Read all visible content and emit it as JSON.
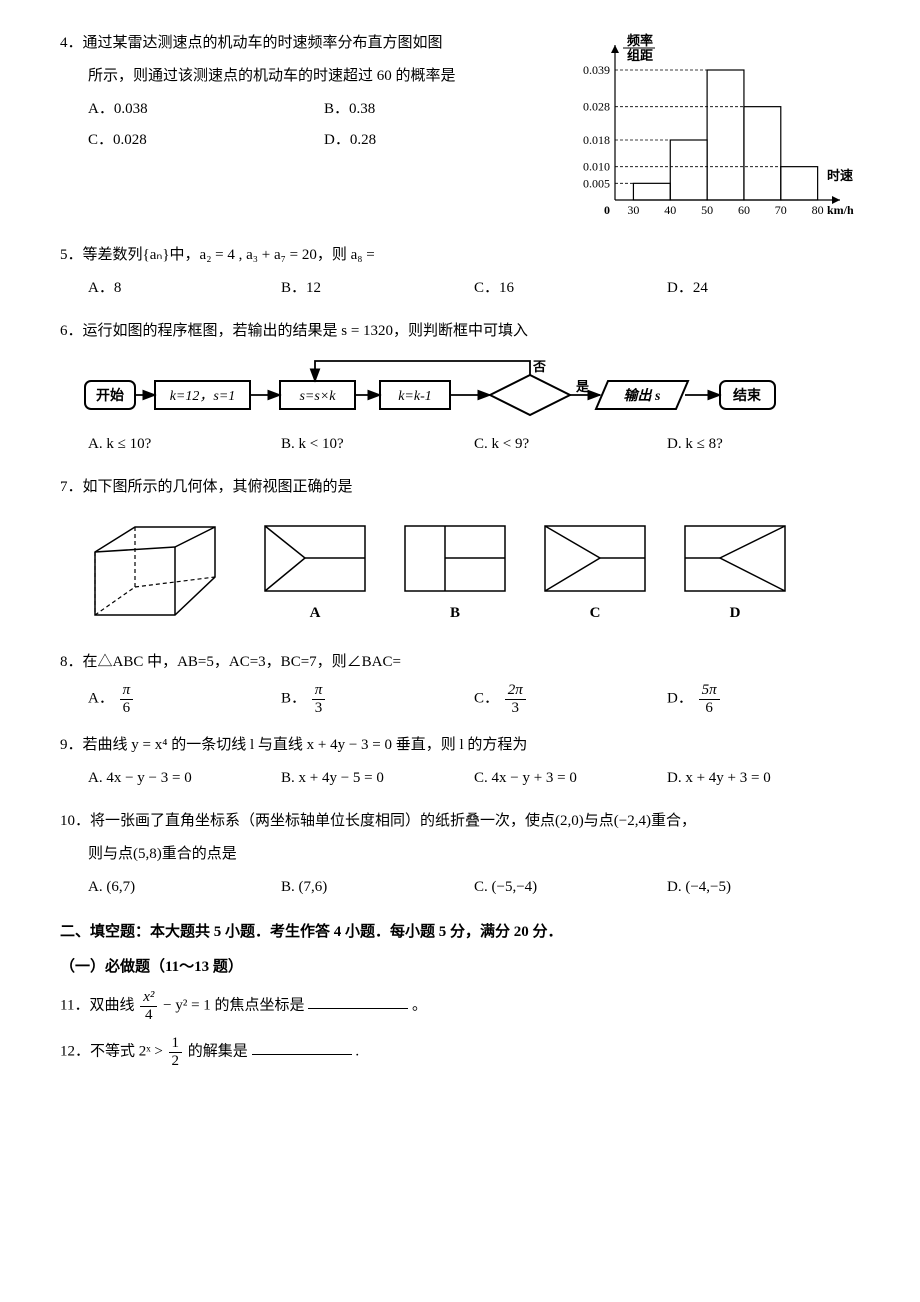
{
  "q4": {
    "num": "4．",
    "line1": "通过某雷达测速点的机动车的时速频率分布直方图如图",
    "line2": "所示，则通过该测速点的机动车的时速超过 60 的概率是",
    "optA": "A．0.038",
    "optB": "B．0.38",
    "optC": "C．0.028",
    "optD": "D．0.28",
    "histogram": {
      "ylabel_num": "频率",
      "ylabel_den": "组距",
      "xlabel1": "时速",
      "xlabel2": "km/h",
      "yticks": [
        "0.005",
        "0.010",
        "0.018",
        "0.028",
        "0.039"
      ],
      "yvals": [
        0.005,
        0.01,
        0.018,
        0.028,
        0.039
      ],
      "xticks": [
        "0",
        "30",
        "40",
        "50",
        "60",
        "70",
        "80"
      ],
      "bars": [
        {
          "x": 30,
          "w": 10,
          "h": 0.005
        },
        {
          "x": 40,
          "w": 10,
          "h": 0.018
        },
        {
          "x": 50,
          "w": 10,
          "h": 0.039
        },
        {
          "x": 60,
          "w": 10,
          "h": 0.028
        },
        {
          "x": 70,
          "w": 10,
          "h": 0.01
        }
      ],
      "axis_color": "#000000",
      "line_width": 1.2
    }
  },
  "q5": {
    "text": "5．等差数列{aₙ}中，a₂ = 4 , a₃ + a₇ = 20，则 a₈ =",
    "optA": "A．8",
    "optB": "B．12",
    "optC": "C．16",
    "optD": "D．24"
  },
  "q6": {
    "text": "6．运行如图的程序框图，若输出的结果是 s = 1320，则判断框中可填入",
    "flow": {
      "start": "开始",
      "init": "k=12，s=1",
      "step1": "s=s×k",
      "step2": "k=k-1",
      "no": "否",
      "yes": "是",
      "out": "输出 s",
      "end": "结束"
    },
    "optA": "A.  k ≤ 10?",
    "optB": "B.  k < 10?",
    "optC": "C.  k < 9?",
    "optD": "D.  k ≤ 8?"
  },
  "q7": {
    "text": "7．如下图所示的几何体，其俯视图正确的是",
    "labels": {
      "A": "A",
      "B": "B",
      "C": "C",
      "D": "D"
    }
  },
  "q8": {
    "text": "8．在△ABC 中，AB=5，AC=3，BC=7，则∠BAC=",
    "optA_prefix": "A．",
    "optA_num": "π",
    "optA_den": "6",
    "optB_prefix": "B．",
    "optB_num": "π",
    "optB_den": "3",
    "optC_prefix": "C．",
    "optC_num": "2π",
    "optC_den": "3",
    "optD_prefix": "D．",
    "optD_num": "5π",
    "optD_den": "6"
  },
  "q9": {
    "text": "9．若曲线 y = x⁴ 的一条切线 l 与直线 x + 4y − 3 = 0 垂直，则 l 的方程为",
    "optA": "A.  4x − y − 3 = 0",
    "optB": "B.   x + 4y − 5 = 0",
    "optC": "C.  4x − y + 3 = 0",
    "optD": "D.   x + 4y + 3 = 0"
  },
  "q10": {
    "text": "10．将一张画了直角坐标系（两坐标轴单位长度相同）的纸折叠一次，使点(2,0)与点(−2,4)重合，",
    "text2": "则与点(5,8)重合的点是",
    "optA": "A.  (6,7)",
    "optB": "B.  (7,6)",
    "optC": "C.  (−5,−4)",
    "optD": "D.  (−4,−5)"
  },
  "section2": {
    "title": "二、填空题：本大题共 5 小题．考生作答 4 小题．每小题 5 分，满分 20 分．",
    "sub": "（一）必做题（11～13 题）"
  },
  "q11": {
    "prefix": "11．双曲线",
    "frac_num": "x²",
    "frac_den": "4",
    "mid": " − y² = 1 的焦点坐标是",
    "suffix": " 。"
  },
  "q12": {
    "prefix": "12．不等式 2ˣ > ",
    "frac_num": "1",
    "frac_den": "2",
    "mid": " 的解集是",
    "suffix": "."
  }
}
